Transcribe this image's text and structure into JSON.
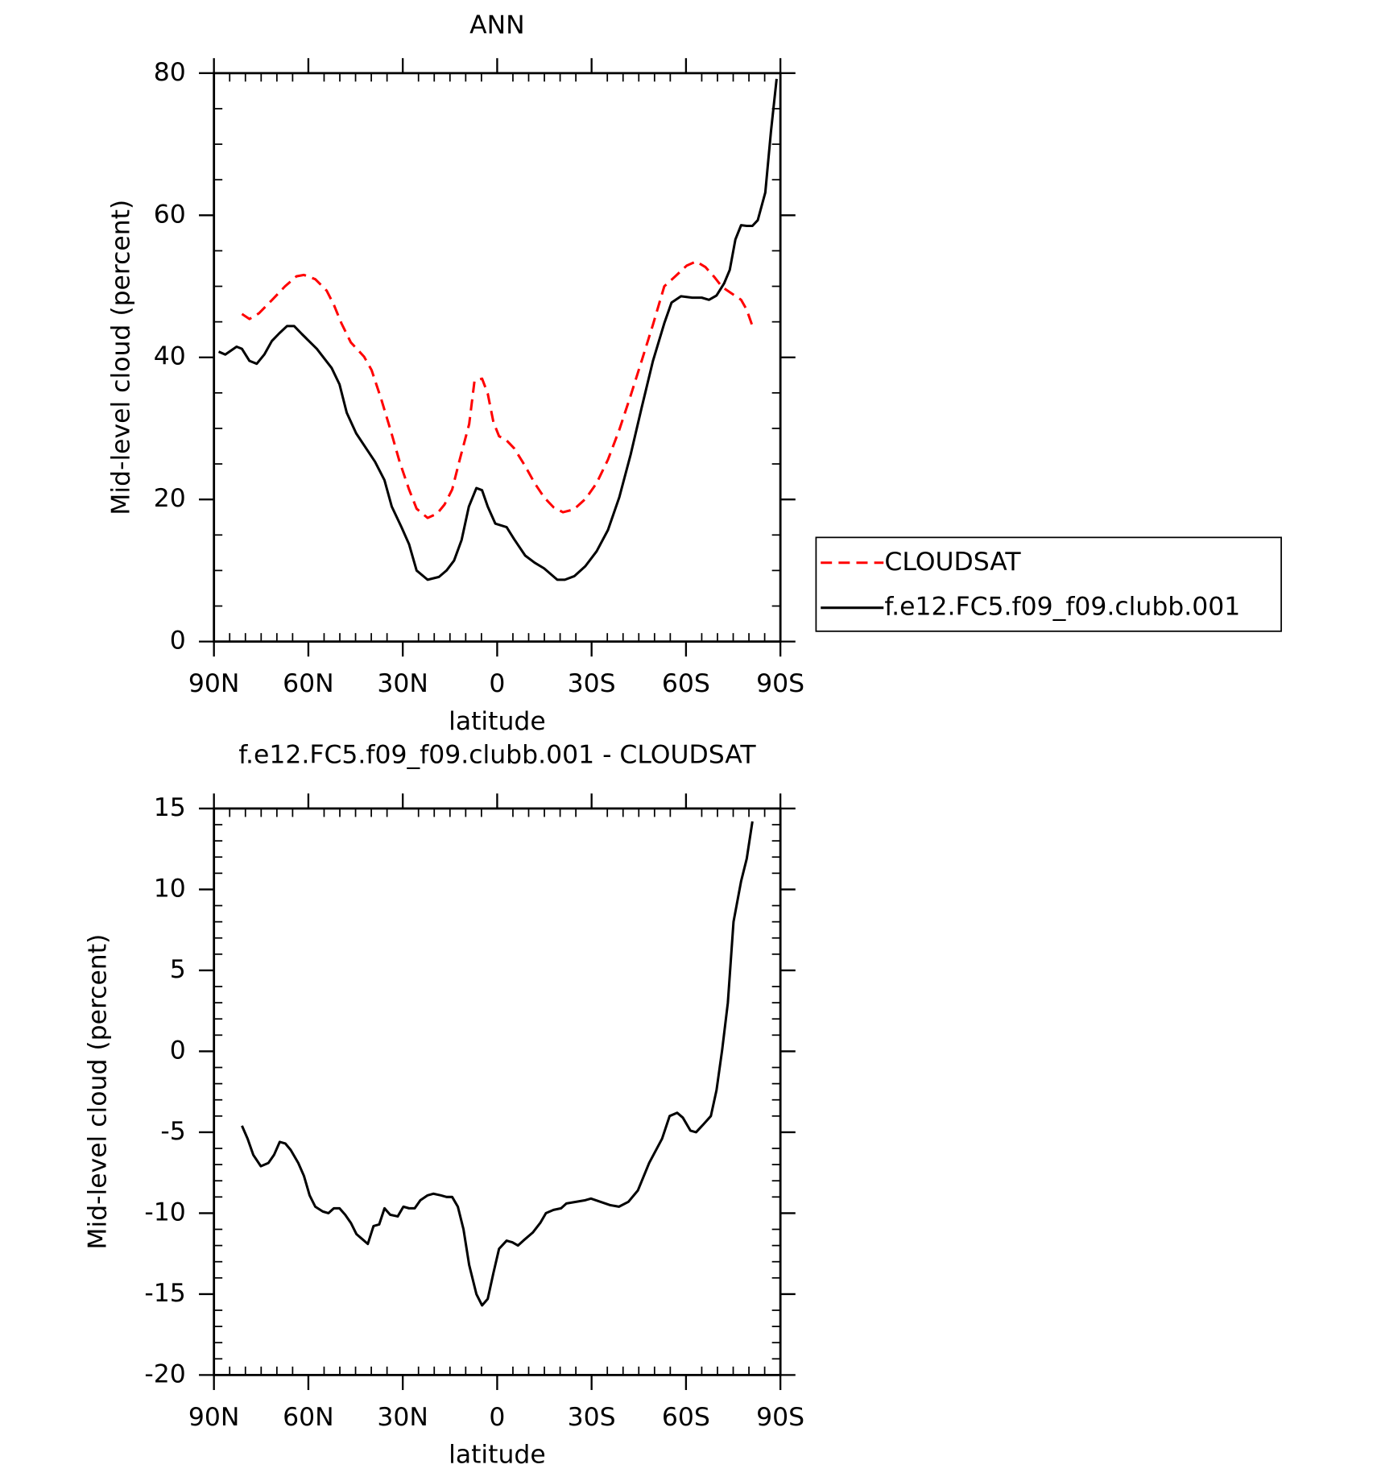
{
  "chart_data": [
    {
      "type": "line",
      "title": "ANN",
      "xlabel": "latitude",
      "ylabel": "Mid-level cloud (percent)",
      "xlim": [
        90,
        -90
      ],
      "xticks": [
        {
          "value": 90,
          "label": "90N"
        },
        {
          "value": 60,
          "label": "60N"
        },
        {
          "value": 30,
          "label": "30N"
        },
        0,
        {
          "value": -30,
          "label": "30S"
        },
        {
          "value": -60,
          "label": "60S"
        },
        {
          "value": -90,
          "label": "90S"
        }
      ],
      "ylim": [
        0,
        80
      ],
      "yticks": [
        0,
        20,
        40,
        60,
        80
      ],
      "legend": "outside right",
      "series": [
        {
          "name": "CLOUDSAT",
          "color": "#ff0000",
          "line_style": "dashed",
          "x": [
            81.1,
            78.7,
            75.7,
            71.5,
            67.4,
            63.8,
            61.4,
            57.8,
            54.2,
            51.9,
            49.5,
            46.5,
            42.3,
            39.9,
            36.9,
            33.9,
            31.0,
            28.0,
            25.6,
            22.1,
            19.1,
            16.7,
            14.3,
            11.9,
            8.9,
            7.2,
            4.8,
            3.0,
            1.2,
            -0.6,
            -3.0,
            -5.4,
            -8.9,
            -11.9,
            -14.9,
            -17.9,
            -20.9,
            -24.4,
            -28.1,
            -31.6,
            -35.2,
            -38.8,
            -42.4,
            -45.9,
            -49.5,
            -53.1,
            -56.6,
            -60.2,
            -63.2,
            -66.2,
            -69.2,
            -71.5,
            -74.5,
            -77.5,
            -79.3,
            -81.1
          ],
          "values": [
            46.1,
            45.4,
            46.2,
            48.1,
            50.0,
            51.4,
            51.6,
            51.0,
            49.4,
            47.4,
            44.8,
            42.1,
            40.1,
            38.2,
            34.2,
            29.8,
            25.3,
            21.4,
            18.7,
            17.4,
            18.0,
            19.3,
            21.4,
            25.6,
            30.6,
            36.7,
            37.0,
            34.9,
            30.9,
            28.9,
            28.3,
            27.2,
            24.7,
            22.3,
            20.3,
            18.9,
            18.2,
            18.6,
            20.1,
            22.3,
            25.6,
            29.8,
            34.6,
            39.5,
            44.6,
            50.0,
            51.4,
            52.9,
            53.5,
            52.7,
            51.2,
            49.9,
            49.0,
            48.1,
            46.7,
            44.4
          ]
        },
        {
          "name": "f.e12.FC5.f09_f09.clubb.001",
          "color": "#000000",
          "line_style": "solid",
          "x": [
            88.5,
            86.4,
            82.8,
            81.1,
            78.7,
            76.4,
            74.0,
            71.6,
            69.2,
            66.8,
            64.5,
            62.1,
            57.3,
            52.6,
            50.1,
            47.8,
            44.8,
            41.2,
            38.8,
            35.8,
            33.5,
            30.4,
            28.0,
            25.6,
            22.1,
            18.5,
            16.1,
            13.7,
            11.3,
            9.0,
            6.6,
            4.8,
            3.0,
            0.6,
            -3.0,
            -5.4,
            -8.9,
            -11.9,
            -14.9,
            -19.1,
            -21.5,
            -24.5,
            -28.0,
            -31.6,
            -35.2,
            -38.8,
            -42.4,
            -45.9,
            -49.5,
            -53.1,
            -55.4,
            -58.4,
            -62.0,
            -65.0,
            -67.3,
            -69.7,
            -72.1,
            -73.9,
            -75.7,
            -77.5,
            -79.3,
            -81.1,
            -82.8,
            -85.2,
            -87.0,
            -88.8
          ],
          "values": [
            40.8,
            40.4,
            41.5,
            41.2,
            39.5,
            39.1,
            40.4,
            42.3,
            43.4,
            44.4,
            44.4,
            43.3,
            41.2,
            38.5,
            36.2,
            32.2,
            29.3,
            26.9,
            25.3,
            22.7,
            19.0,
            16.1,
            13.7,
            10.0,
            8.7,
            9.1,
            10.0,
            11.4,
            14.3,
            19.0,
            21.6,
            21.3,
            19.0,
            16.6,
            16.1,
            14.4,
            12.1,
            11.1,
            10.3,
            8.7,
            8.7,
            9.2,
            10.6,
            12.7,
            15.7,
            20.3,
            26.3,
            32.9,
            39.5,
            44.8,
            47.7,
            48.6,
            48.4,
            48.4,
            48.1,
            48.7,
            50.4,
            52.3,
            56.6,
            58.6,
            58.5,
            58.5,
            59.3,
            63.2,
            71.8,
            79.2
          ]
        }
      ]
    },
    {
      "type": "line",
      "title": "f.e12.FC5.f09_f09.clubb.001 - CLOUDSAT",
      "xlabel": "latitude",
      "ylabel": "Mid-level cloud (percent)",
      "xlim": [
        90,
        -90
      ],
      "xticks": [
        {
          "value": 90,
          "label": "90N"
        },
        {
          "value": 60,
          "label": "60N"
        },
        {
          "value": 30,
          "label": "30N"
        },
        0,
        {
          "value": -30,
          "label": "30S"
        },
        {
          "value": -60,
          "label": "60S"
        },
        {
          "value": -90,
          "label": "90S"
        }
      ],
      "ylim": [
        -20,
        15
      ],
      "yticks": [
        -20,
        -15,
        -10,
        -5,
        0,
        5,
        10,
        15
      ],
      "series": [
        {
          "color": "#000000",
          "line_style": "solid",
          "x": [
            81.1,
            79.3,
            77.5,
            75.1,
            72.7,
            70.9,
            69.1,
            67.3,
            65.6,
            63.2,
            61.4,
            59.6,
            57.8,
            55.4,
            53.6,
            51.9,
            50.1,
            48.3,
            46.5,
            44.7,
            42.9,
            41.1,
            39.3,
            37.5,
            35.8,
            34.0,
            31.6,
            29.8,
            28.0,
            26.2,
            24.4,
            22.1,
            20.3,
            17.9,
            16.1,
            14.3,
            12.5,
            10.7,
            8.9,
            6.6,
            4.8,
            3.0,
            1.2,
            -0.6,
            -3.0,
            -4.8,
            -6.6,
            -8.3,
            -11.3,
            -13.7,
            -15.5,
            -17.9,
            -20.3,
            -22.0,
            -25.0,
            -28.0,
            -29.8,
            -32.8,
            -35.8,
            -38.7,
            -41.7,
            -44.7,
            -48.3,
            -52.4,
            -54.8,
            -57.2,
            -59.0,
            -61.4,
            -63.2,
            -65.6,
            -67.9,
            -69.7,
            -71.5,
            -73.3,
            -75.1,
            -77.5,
            -79.3,
            -81.1
          ],
          "values": [
            -4.6,
            -5.4,
            -6.4,
            -7.1,
            -6.9,
            -6.4,
            -5.6,
            -5.7,
            -6.1,
            -6.9,
            -7.7,
            -8.9,
            -9.6,
            -9.9,
            -10.0,
            -9.7,
            -9.7,
            -10.1,
            -10.6,
            -11.3,
            -11.6,
            -11.9,
            -10.8,
            -10.7,
            -9.7,
            -10.1,
            -10.2,
            -9.6,
            -9.7,
            -9.7,
            -9.2,
            -8.9,
            -8.8,
            -8.9,
            -9.0,
            -9.0,
            -9.6,
            -11.0,
            -13.2,
            -15.0,
            -15.7,
            -15.3,
            -13.7,
            -12.2,
            -11.7,
            -11.8,
            -12.0,
            -11.7,
            -11.2,
            -10.6,
            -10.0,
            -9.8,
            -9.7,
            -9.4,
            -9.3,
            -9.2,
            -9.1,
            -9.3,
            -9.5,
            -9.6,
            -9.3,
            -8.6,
            -6.9,
            -5.4,
            -4.0,
            -3.8,
            -4.1,
            -4.9,
            -5.0,
            -4.5,
            -4.0,
            -2.4,
            0.1,
            3.0,
            8.0,
            10.5,
            11.9,
            14.2
          ]
        }
      ]
    }
  ]
}
